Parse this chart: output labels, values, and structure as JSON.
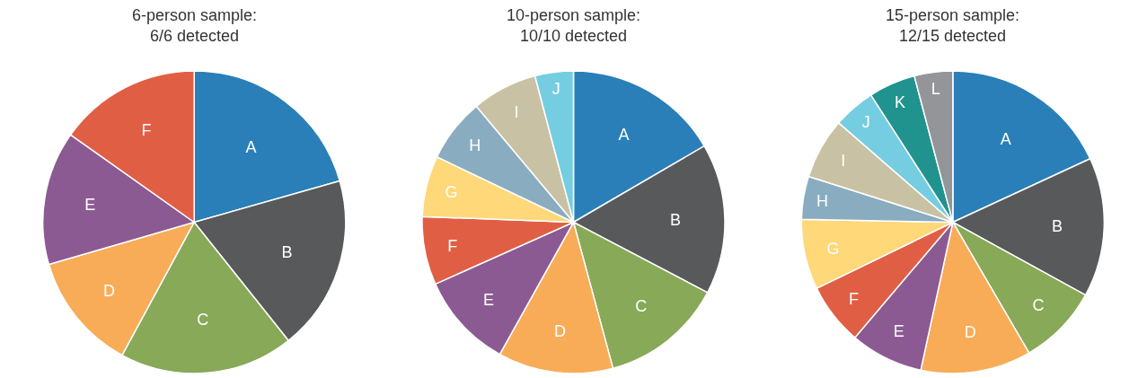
{
  "chart_data": [
    {
      "type": "pie",
      "title": "6-person sample:\n6/6 detected",
      "categories": [
        "A",
        "B",
        "C",
        "D",
        "E",
        "F"
      ],
      "values": [
        20.6,
        18.7,
        18.6,
        12.6,
        14.3,
        15.2
      ],
      "colors": [
        "#2a7fb8",
        "#58595b",
        "#87a958",
        "#f8ac58",
        "#8c5a93",
        "#e05f44"
      ],
      "legend": false
    },
    {
      "type": "pie",
      "title": "10-person sample:\n10/10 detected",
      "categories": [
        "A",
        "B",
        "C",
        "D",
        "E",
        "F",
        "G",
        "H",
        "I",
        "J"
      ],
      "values": [
        16.6,
        16.1,
        13.1,
        12.3,
        10.2,
        7.3,
        6.5,
        6.8,
        7.0,
        4.1
      ],
      "colors": [
        "#2a7fb8",
        "#58595b",
        "#87a958",
        "#f8ac58",
        "#8c5a93",
        "#e05f44",
        "#fed879",
        "#8aacc0",
        "#c9c1a3",
        "#75cde2"
      ],
      "legend": false
    },
    {
      "type": "pie",
      "title": "15-person sample:\n12/15 detected",
      "categories": [
        "A",
        "B",
        "C",
        "D",
        "E",
        "F",
        "G",
        "H",
        "I",
        "J",
        "K",
        "L"
      ],
      "values": [
        18.1,
        14.9,
        8.6,
        11.8,
        7.8,
        6.6,
        7.5,
        4.6,
        6.5,
        4.5,
        5.0,
        4.1
      ],
      "colors": [
        "#2a7fb8",
        "#58595b",
        "#87a958",
        "#f8ac58",
        "#8c5a93",
        "#e05f44",
        "#fed879",
        "#8aacc0",
        "#c9c1a3",
        "#75cde2",
        "#21938e",
        "#939598"
      ],
      "legend": false
    }
  ]
}
